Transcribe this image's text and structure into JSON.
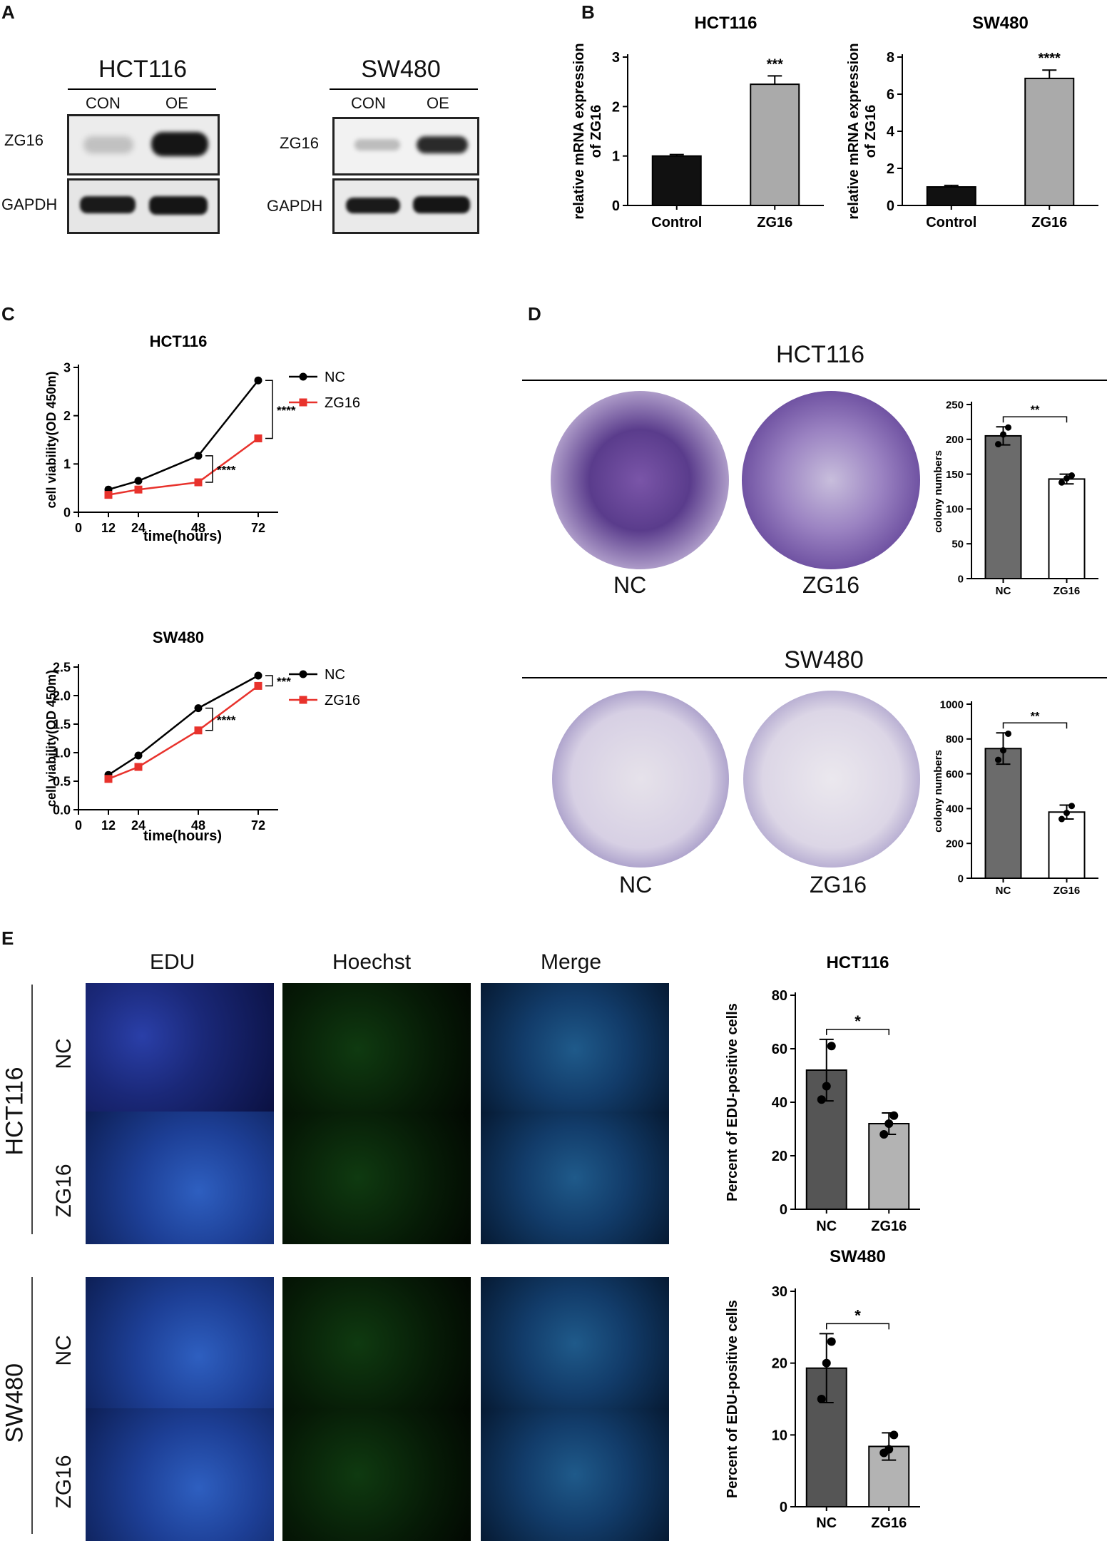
{
  "panel_labels": {
    "a": "A",
    "b": "B",
    "c": "C",
    "d": "D",
    "e": "E"
  },
  "panelA": {
    "blots": [
      {
        "title": "HCT116",
        "lanes": [
          "CON",
          "OE"
        ],
        "rows": [
          "ZG16",
          "GAPDH"
        ]
      },
      {
        "title": "SW480",
        "lanes": [
          "CON",
          "OE"
        ],
        "rows": [
          "ZG16",
          "GAPDH"
        ]
      }
    ]
  },
  "chart_data": [
    {
      "panel": "B",
      "type": "bar",
      "title": "HCT116",
      "categories": [
        "Control",
        "ZG16"
      ],
      "values": [
        1.0,
        2.45
      ],
      "errors": [
        0.03,
        0.17
      ],
      "colors": [
        "#111111",
        "#aaaaaa"
      ],
      "ylabel": "relative mRNA expression\nof ZG16",
      "ylim": [
        0,
        3
      ],
      "yticks": [
        0,
        1,
        2,
        3
      ],
      "significance": "***"
    },
    {
      "panel": "B",
      "type": "bar",
      "title": "SW480",
      "categories": [
        "Control",
        "ZG16"
      ],
      "values": [
        1.0,
        6.85
      ],
      "errors": [
        0.08,
        0.45
      ],
      "colors": [
        "#111111",
        "#aaaaaa"
      ],
      "ylabel": "relative mRNA expression\nof ZG16",
      "ylim": [
        0,
        8
      ],
      "yticks": [
        0,
        2,
        4,
        6,
        8
      ],
      "significance": "****"
    },
    {
      "panel": "C",
      "type": "line",
      "title": "HCT116",
      "x": [
        12,
        24,
        48,
        72
      ],
      "xticks": [
        0,
        12,
        24,
        48,
        72
      ],
      "xlim": [
        0,
        80
      ],
      "series": [
        {
          "name": "NC",
          "values": [
            0.47,
            0.65,
            1.17,
            2.73
          ],
          "color": "#000000"
        },
        {
          "name": "ZG16",
          "values": [
            0.36,
            0.47,
            0.62,
            1.53
          ],
          "color": "#e8322c"
        }
      ],
      "xlabel": "time(hours)",
      "ylabel": "cell viability(OD 450m)",
      "ylim": [
        0,
        3
      ],
      "yticks": [
        0,
        1,
        2,
        3
      ],
      "yticklabels": [
        "0",
        "1",
        "2",
        "3"
      ],
      "annotations": [
        {
          "at": 48,
          "text": "****"
        },
        {
          "at": 72,
          "text": "****"
        }
      ]
    },
    {
      "panel": "C",
      "type": "line",
      "title": "SW480",
      "x": [
        12,
        24,
        48,
        72
      ],
      "xticks": [
        0,
        12,
        24,
        48,
        72
      ],
      "xlim": [
        0,
        80
      ],
      "series": [
        {
          "name": "NC",
          "values": [
            0.61,
            0.95,
            1.78,
            2.35
          ],
          "color": "#000000"
        },
        {
          "name": "ZG16",
          "values": [
            0.54,
            0.75,
            1.39,
            2.17
          ],
          "color": "#e8322c"
        }
      ],
      "xlabel": "time(hours)",
      "ylabel": "cell viability(OD 450m)",
      "ylim": [
        0,
        2.5
      ],
      "yticks": [
        0,
        0.5,
        1,
        1.5,
        2,
        2.5
      ],
      "yticklabels": [
        "0.0",
        "0.5",
        "1.0",
        "1.5",
        "2.0",
        "2.5"
      ],
      "annotations": [
        {
          "at": 48,
          "text": "****"
        },
        {
          "at": 72,
          "text": "***"
        }
      ]
    },
    {
      "panel": "D",
      "type": "bar",
      "title": "HCT116",
      "categories": [
        "NC",
        "ZG16"
      ],
      "values": [
        205,
        143
      ],
      "errors": [
        13,
        7
      ],
      "points": [
        [
          193,
          207,
          217
        ],
        [
          138,
          144,
          148
        ]
      ],
      "colors": [
        "#6b6b6b",
        "#ffffff"
      ],
      "ylabel": "colony numbers",
      "ylim": [
        0,
        250
      ],
      "yticks": [
        0,
        50,
        100,
        150,
        200,
        250
      ],
      "significance": "**"
    },
    {
      "panel": "D",
      "type": "bar",
      "title": "SW480",
      "categories": [
        "NC",
        "ZG16"
      ],
      "values": [
        745,
        380
      ],
      "errors": [
        90,
        40
      ],
      "points": [
        [
          680,
          735,
          830
        ],
        [
          340,
          375,
          415
        ]
      ],
      "colors": [
        "#6b6b6b",
        "#ffffff"
      ],
      "ylabel": "colony numbers",
      "ylim": [
        0,
        1000
      ],
      "yticks": [
        0,
        200,
        400,
        600,
        800,
        1000
      ],
      "significance": "**"
    },
    {
      "panel": "E",
      "type": "bar",
      "title": "HCT116",
      "categories": [
        "NC",
        "ZG16"
      ],
      "values": [
        52,
        32
      ],
      "errors": [
        11.5,
        4
      ],
      "points": [
        [
          41,
          46,
          61
        ],
        [
          28,
          32,
          35
        ]
      ],
      "colors": [
        "#555555",
        "#b3b3b3"
      ],
      "ylabel": "Percent of EDU-positive cells",
      "ylim": [
        0,
        80
      ],
      "yticks": [
        0,
        20,
        40,
        60,
        80
      ],
      "significance": "*"
    },
    {
      "panel": "E",
      "type": "bar",
      "title": "SW480",
      "categories": [
        "NC",
        "ZG16"
      ],
      "values": [
        19.3,
        8.4
      ],
      "errors": [
        4.8,
        1.9
      ],
      "points": [
        [
          15,
          20,
          23
        ],
        [
          7.5,
          8,
          10
        ]
      ],
      "colors": [
        "#555555",
        "#b3b3b3"
      ],
      "ylabel": "Percent of EDU-positive cells",
      "ylim": [
        0,
        30
      ],
      "yticks": [
        0,
        10,
        20,
        30
      ],
      "significance": "*"
    }
  ],
  "panelD": {
    "sections": [
      {
        "title": "HCT116",
        "dish_labels": [
          "NC",
          "ZG16"
        ]
      },
      {
        "title": "SW480",
        "dish_labels": [
          "NC",
          "ZG16"
        ]
      }
    ]
  },
  "panelE": {
    "columns": [
      "EDU",
      "Hoechst",
      "Merge"
    ],
    "groups": [
      {
        "cell_line": "HCT116",
        "rows": [
          "NC",
          "ZG16"
        ]
      },
      {
        "cell_line": "SW480",
        "rows": [
          "NC",
          "ZG16"
        ]
      }
    ]
  }
}
